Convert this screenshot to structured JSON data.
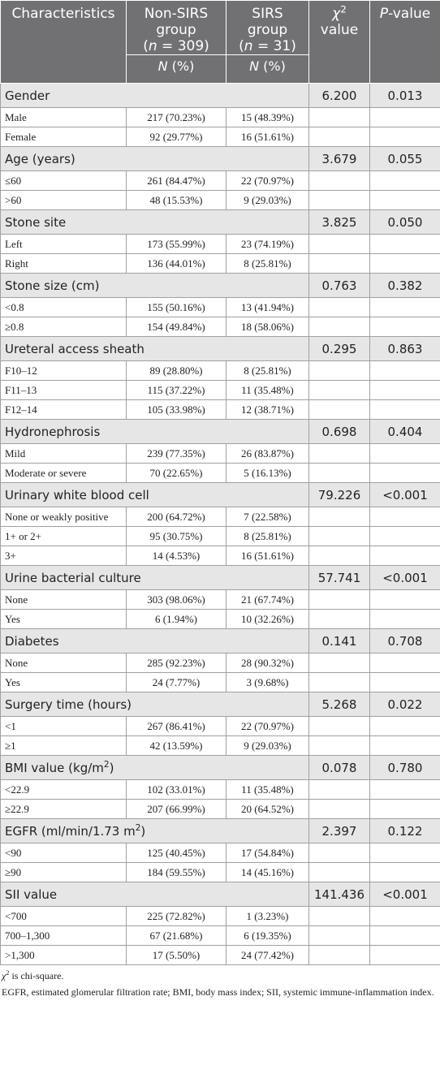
{
  "header": {
    "characteristics": "Characteristics",
    "non_sirs": {
      "title": "Non-SIRS group",
      "n": [
        "(",
        "n",
        " = 309)"
      ]
    },
    "sirs": {
      "title": "SIRS group",
      "n": [
        "(",
        "n",
        " = 31)"
      ]
    },
    "chi": [
      "χ",
      "2",
      "value"
    ],
    "p": [
      "P",
      "-value"
    ],
    "sub": [
      "N",
      " (%)"
    ]
  },
  "sections": [
    {
      "name": [
        "Gender"
      ],
      "chi2": "6.200",
      "p": "0.013",
      "rows": [
        [
          "Male",
          "217 (70.23%)",
          "15 (48.39%)"
        ],
        [
          "Female",
          "92 (29.77%)",
          "16 (51.61%)"
        ]
      ]
    },
    {
      "name": [
        "Age (years)"
      ],
      "chi2": "3.679",
      "p": "0.055",
      "rows": [
        [
          "≤60",
          "261 (84.47%)",
          "22 (70.97%)"
        ],
        [
          ">60",
          "48 (15.53%)",
          "9 (29.03%)"
        ]
      ]
    },
    {
      "name": [
        "Stone site"
      ],
      "chi2": "3.825",
      "p": "0.050",
      "rows": [
        [
          "Left",
          "173 (55.99%)",
          "23 (74.19%)"
        ],
        [
          "Right",
          "136 (44.01%)",
          "8 (25.81%)"
        ]
      ]
    },
    {
      "name": [
        "Stone size (cm)"
      ],
      "chi2": "0.763",
      "p": "0.382",
      "rows": [
        [
          "<0.8",
          "155 (50.16%)",
          "13 (41.94%)"
        ],
        [
          "≥0.8",
          "154 (49.84%)",
          "18 (58.06%)"
        ]
      ]
    },
    {
      "name": [
        "Ureteral access sheath"
      ],
      "chi2": "0.295",
      "p": "0.863",
      "rows": [
        [
          "F10–12",
          "89 (28.80%)",
          "8 (25.81%)"
        ],
        [
          "F11–13",
          "115 (37.22%)",
          "11 (35.48%)"
        ],
        [
          "F12–14",
          "105 (33.98%)",
          "12 (38.71%)"
        ]
      ]
    },
    {
      "name": [
        "Hydronephrosis"
      ],
      "chi2": "0.698",
      "p": "0.404",
      "rows": [
        [
          "Mild",
          "239 (77.35%)",
          "26 (83.87%)"
        ],
        [
          "Moderate or severe",
          "70 (22.65%)",
          "5 (16.13%)"
        ]
      ]
    },
    {
      "name": [
        "Urinary white blood cell"
      ],
      "chi2": "79.226",
      "p": "<0.001",
      "rows": [
        [
          "None or weakly positive",
          "200 (64.72%)",
          "7 (22.58%)"
        ],
        [
          "1+ or 2+",
          "95 (30.75%)",
          "8 (25.81%)"
        ],
        [
          "3+",
          "14 (4.53%)",
          "16 (51.61%)"
        ]
      ]
    },
    {
      "name": [
        "Urine bacterial culture"
      ],
      "chi2": "57.741",
      "p": "<0.001",
      "rows": [
        [
          "None",
          "303 (98.06%)",
          "21 (67.74%)"
        ],
        [
          "Yes",
          "6 (1.94%)",
          "10 (32.26%)"
        ]
      ]
    },
    {
      "name": [
        "Diabetes"
      ],
      "chi2": "0.141",
      "p": "0.708",
      "rows": [
        [
          "None",
          "285 (92.23%)",
          "28 (90.32%)"
        ],
        [
          "Yes",
          "24 (7.77%)",
          "3 (9.68%)"
        ]
      ]
    },
    {
      "name": [
        "Surgery time (hours)"
      ],
      "chi2": "5.268",
      "p": "0.022",
      "rows": [
        [
          "<1",
          "267 (86.41%)",
          "22 (70.97%)"
        ],
        [
          "≥1",
          "42 (13.59%)",
          "9 (29.03%)"
        ]
      ]
    },
    {
      "name": [
        "BMI value (kg/m",
        "2",
        ")"
      ],
      "chi2": "0.078",
      "p": "0.780",
      "rows": [
        [
          "<22.9",
          "102 (33.01%)",
          "11 (35.48%)"
        ],
        [
          "≥22.9",
          "207 (66.99%)",
          "20 (64.52%)"
        ]
      ]
    },
    {
      "name": [
        "EGFR (ml/min/1.73 m",
        "2",
        ")"
      ],
      "chi2": "2.397",
      "p": "0.122",
      "rows": [
        [
          "<90",
          "125 (40.45%)",
          "17 (54.84%)"
        ],
        [
          "≥90",
          "184 (59.55%)",
          "14 (45.16%)"
        ]
      ]
    },
    {
      "name": [
        "SII value"
      ],
      "chi2": "141.436",
      "p": "<0.001",
      "rows": [
        [
          "<700",
          "225 (72.82%)",
          "1 (3.23%)"
        ],
        [
          "700–1,300",
          "67 (21.68%)",
          "6 (19.35%)"
        ],
        [
          ">1,300",
          "17 (5.50%)",
          "24 (77.42%)"
        ]
      ]
    }
  ],
  "footnotes": {
    "chi": [
      "χ",
      "2",
      " is chi-square."
    ],
    "abbrev": "EGFR, estimated glomerular filtration rate; BMI, body mass index; SII, systemic immune-inflammation index."
  }
}
